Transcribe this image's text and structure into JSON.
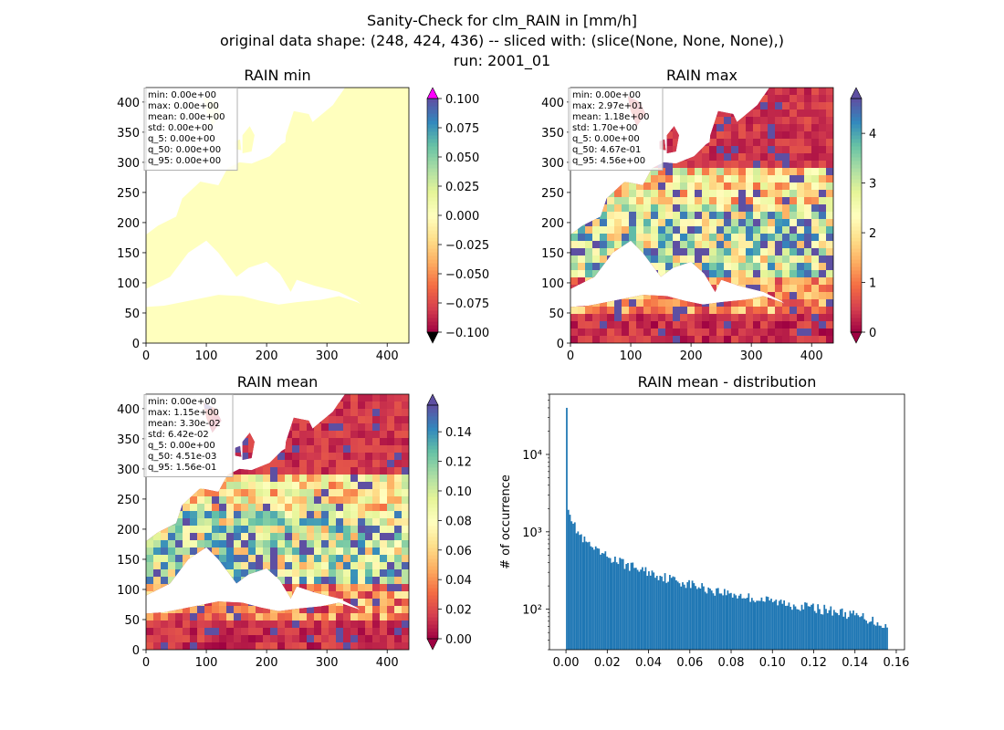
{
  "figure": {
    "title_lines": [
      "Sanity-Check for clm_RAIN in [mm/h]",
      "original data shape: (248, 424, 436) -- sliced with: (slice(None, None, None),)",
      "run: 2001_01"
    ]
  },
  "chart_data": [
    {
      "type": "heatmap",
      "title": "RAIN min",
      "xlim": [
        0,
        436
      ],
      "ylim": [
        0,
        424
      ],
      "x_ticks": [
        0,
        100,
        200,
        300,
        400
      ],
      "y_ticks": [
        0,
        50,
        100,
        150,
        200,
        250,
        300,
        350,
        400
      ],
      "colormap": "Spectral",
      "colorbar": {
        "range": [
          -0.1,
          0.1
        ],
        "ticks": [
          "0.100",
          "0.075",
          "0.050",
          "0.025",
          "0.000",
          "−0.025",
          "−0.050",
          "−0.075",
          "−0.100"
        ],
        "extend_max_color": "#ff00ff",
        "extend_min_color": "#000000"
      },
      "stats": [
        "min: 0.00e+00",
        "max: 0.00e+00",
        "mean: 0.00e+00",
        "std: 0.00e+00",
        "q_5: 0.00e+00",
        "q_50: 0.00e+00",
        "q_95: 0.00e+00"
      ]
    },
    {
      "type": "heatmap",
      "title": "RAIN max",
      "xlim": [
        0,
        436
      ],
      "ylim": [
        0,
        424
      ],
      "x_ticks": [
        0,
        100,
        200,
        300,
        400
      ],
      "y_ticks": [
        0,
        50,
        100,
        150,
        200,
        250,
        300,
        350,
        400
      ],
      "colormap": "Spectral",
      "colorbar": {
        "range": [
          0,
          4.7
        ],
        "ticks": [
          "4",
          "3",
          "2",
          "1",
          "0"
        ]
      },
      "stats": [
        "min: 0.00e+00",
        "max: 2.97e+01",
        "mean: 1.18e+00",
        "std: 1.70e+00",
        "q_5: 0.00e+00",
        "q_50: 4.67e-01",
        "q_95: 4.56e+00"
      ]
    },
    {
      "type": "heatmap",
      "title": "RAIN mean",
      "xlim": [
        0,
        436
      ],
      "ylim": [
        0,
        424
      ],
      "x_ticks": [
        0,
        100,
        200,
        300,
        400
      ],
      "y_ticks": [
        0,
        50,
        100,
        150,
        200,
        250,
        300,
        350,
        400
      ],
      "colormap": "Spectral",
      "colorbar": {
        "range": [
          0,
          0.158
        ],
        "ticks": [
          "0.14",
          "0.12",
          "0.10",
          "0.08",
          "0.06",
          "0.04",
          "0.02",
          "0.00"
        ]
      },
      "stats": [
        "min: 0.00e+00",
        "max: 1.15e+00",
        "mean: 3.30e-02",
        "std: 6.42e-02",
        "q_5: 0.00e+00",
        "q_50: 4.51e-03",
        "q_95: 1.56e-01"
      ]
    },
    {
      "type": "bar",
      "title": "RAIN mean - distribution",
      "ylabel": "# of occurrence",
      "xlim": [
        -0.008,
        0.164
      ],
      "ylim": [
        30,
        60000
      ],
      "log_y": true,
      "x_ticks": [
        "0.00",
        "0.02",
        "0.04",
        "0.06",
        "0.08",
        "0.10",
        "0.12",
        "0.14",
        "0.16"
      ],
      "y_ticks": [
        "10²",
        "10³",
        "10⁴"
      ],
      "bar_color": "#1f77b4",
      "bin_range": [
        0,
        0.156
      ],
      "bins": 200,
      "anchor_counts": [
        [
          0.0,
          40000
        ],
        [
          0.0008,
          2500
        ],
        [
          0.002,
          1800
        ],
        [
          0.004,
          1200
        ],
        [
          0.008,
          800
        ],
        [
          0.015,
          550
        ],
        [
          0.03,
          370
        ],
        [
          0.05,
          250
        ],
        [
          0.07,
          180
        ],
        [
          0.09,
          140
        ],
        [
          0.11,
          115
        ],
        [
          0.13,
          95
        ],
        [
          0.145,
          78
        ],
        [
          0.156,
          60
        ]
      ]
    }
  ]
}
